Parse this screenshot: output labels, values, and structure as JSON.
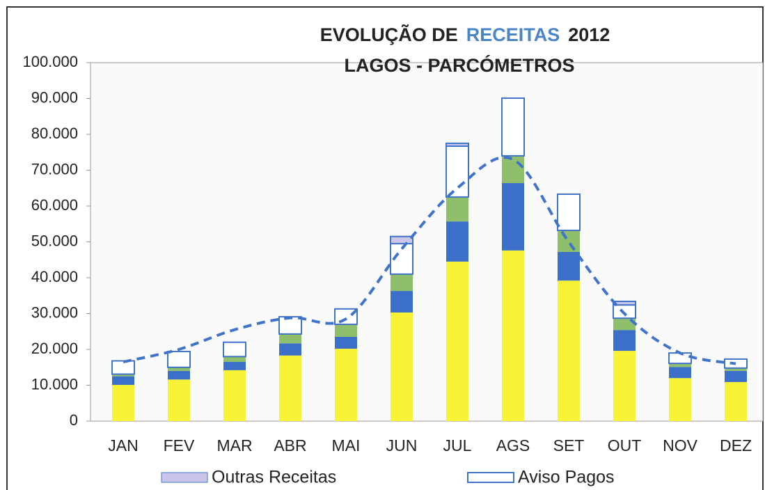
{
  "chart_data": {
    "type": "bar",
    "stacked": true,
    "title": [
      {
        "text": "EVOLUÇÃO DE"
      },
      {
        "text": "RECEITAS",
        "color": "#4a86c5"
      },
      {
        "text": "2012"
      }
    ],
    "subtitle": "LAGOS - PARCÓMETROS",
    "categories": [
      "JAN",
      "FEV",
      "MAR",
      "ABR",
      "MAI",
      "JUN",
      "JUL",
      "AGS",
      "SET",
      "OUT",
      "NOV",
      "DEZ"
    ],
    "series": [
      {
        "color": "#f7f235",
        "values": [
          10100,
          11600,
          14200,
          18300,
          20200,
          30300,
          44500,
          47600,
          39200,
          19600,
          12000,
          10900
        ]
      },
      {
        "color": "#3b6fc8",
        "values": [
          2400,
          2400,
          2300,
          3400,
          3300,
          6000,
          11200,
          18800,
          8000,
          5800,
          3100,
          3100
        ]
      },
      {
        "color": "#8fbf6a",
        "values": [
          600,
          1000,
          1500,
          2600,
          3500,
          4700,
          6800,
          7600,
          6000,
          3300,
          1000,
          800
        ]
      },
      {
        "name": "Aviso Pagos",
        "color": "#ffffff",
        "values": [
          3700,
          4400,
          4000,
          4800,
          4300,
          8500,
          14200,
          16100,
          10100,
          3700,
          2900,
          2500
        ]
      },
      {
        "name": "Outras Receitas",
        "color": "#c9c6ea",
        "values": [
          0,
          0,
          0,
          0,
          0,
          2000,
          800,
          0,
          0,
          1000,
          0,
          0
        ]
      }
    ],
    "line": {
      "color": "#3f74c9",
      "dashed": true,
      "values": [
        16500,
        20000,
        25500,
        28800,
        28500,
        48000,
        65000,
        73000,
        50000,
        30000,
        19000,
        16000
      ]
    },
    "ylim": [
      0,
      100000
    ],
    "yticks": [
      0,
      {
        "value": 10000,
        "label": "10.000"
      },
      {
        "value": 20000,
        "label": "20.000"
      },
      {
        "value": 30000,
        "label": "30.000"
      },
      {
        "value": 40000,
        "label": "40.000"
      },
      {
        "value": 50000,
        "label": "50.000"
      },
      {
        "value": 60000,
        "label": "60.000"
      },
      {
        "value": 70000,
        "label": "70.000"
      },
      {
        "value": 80000,
        "label": "80.000"
      },
      {
        "value": 90000,
        "label": "90.000"
      },
      {
        "value": 100000,
        "label": "100.000"
      }
    ],
    "legend_order": [
      4,
      3
    ]
  }
}
